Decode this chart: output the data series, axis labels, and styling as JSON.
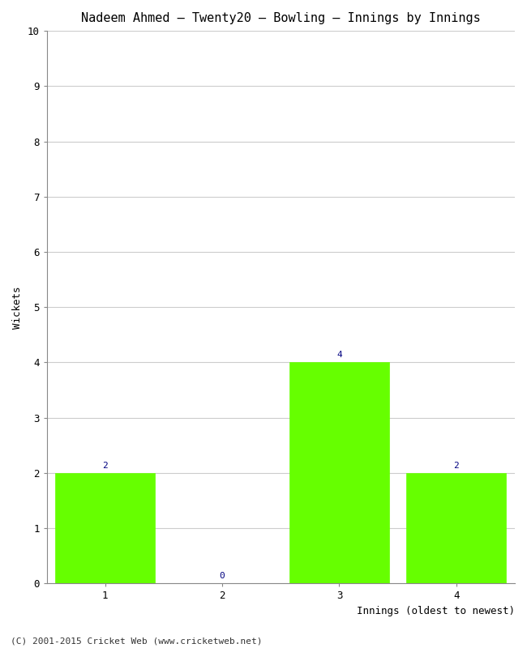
{
  "title": "Nadeem Ahmed – Twenty20 – Bowling – Innings by Innings",
  "xlabel": "Innings (oldest to newest)",
  "ylabel": "Wickets",
  "categories": [
    "1",
    "2",
    "3",
    "4"
  ],
  "values": [
    2,
    0,
    4,
    2
  ],
  "bar_color": "#66ff00",
  "bar_edge_color": "#66ff00",
  "label_color": "#000080",
  "ylim": [
    0,
    10
  ],
  "yticks": [
    0,
    1,
    2,
    3,
    4,
    5,
    6,
    7,
    8,
    9,
    10
  ],
  "background_color": "#ffffff",
  "footer": "(C) 2001-2015 Cricket Web (www.cricketweb.net)",
  "title_fontsize": 11,
  "axis_label_fontsize": 9,
  "tick_fontsize": 9,
  "label_fontsize": 8,
  "footer_fontsize": 8
}
